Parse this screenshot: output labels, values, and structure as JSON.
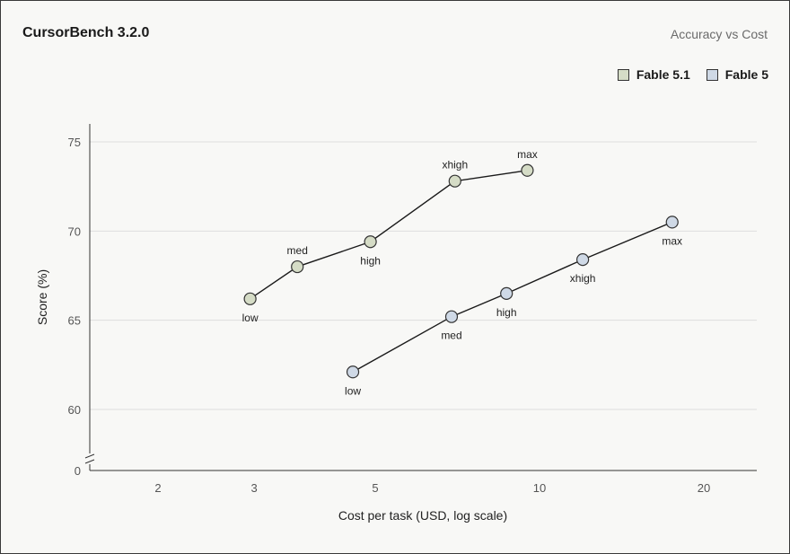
{
  "header": {
    "title": "CursorBench 3.2.0",
    "subtitle": "Accuracy vs Cost"
  },
  "chart_data": {
    "type": "line",
    "xlabel": "Cost per task (USD, log scale)",
    "ylabel": "Score (%)",
    "x_scale": "log",
    "x_ticks": [
      2,
      3,
      5,
      10,
      20
    ],
    "y_ticks": [
      0,
      60,
      65,
      70,
      75
    ],
    "y_axis_break": true,
    "grid": true,
    "legend_position": "top-right",
    "series": [
      {
        "name": "Fable 5.1",
        "color": "#d5dcc6",
        "points": [
          {
            "x": 2.95,
            "y": 66.2,
            "label": "low"
          },
          {
            "x": 3.6,
            "y": 68.0,
            "label": "med"
          },
          {
            "x": 4.9,
            "y": 69.4,
            "label": "high"
          },
          {
            "x": 7.0,
            "y": 72.8,
            "label": "xhigh"
          },
          {
            "x": 9.5,
            "y": 73.4,
            "label": "max"
          }
        ]
      },
      {
        "name": "Fable 5",
        "color": "#cfd9e6",
        "points": [
          {
            "x": 4.55,
            "y": 62.1,
            "label": "low"
          },
          {
            "x": 6.9,
            "y": 65.2,
            "label": "med"
          },
          {
            "x": 8.7,
            "y": 66.5,
            "label": "high"
          },
          {
            "x": 12.0,
            "y": 68.4,
            "label": "xhigh"
          },
          {
            "x": 17.5,
            "y": 70.5,
            "label": "max"
          }
        ]
      }
    ]
  }
}
